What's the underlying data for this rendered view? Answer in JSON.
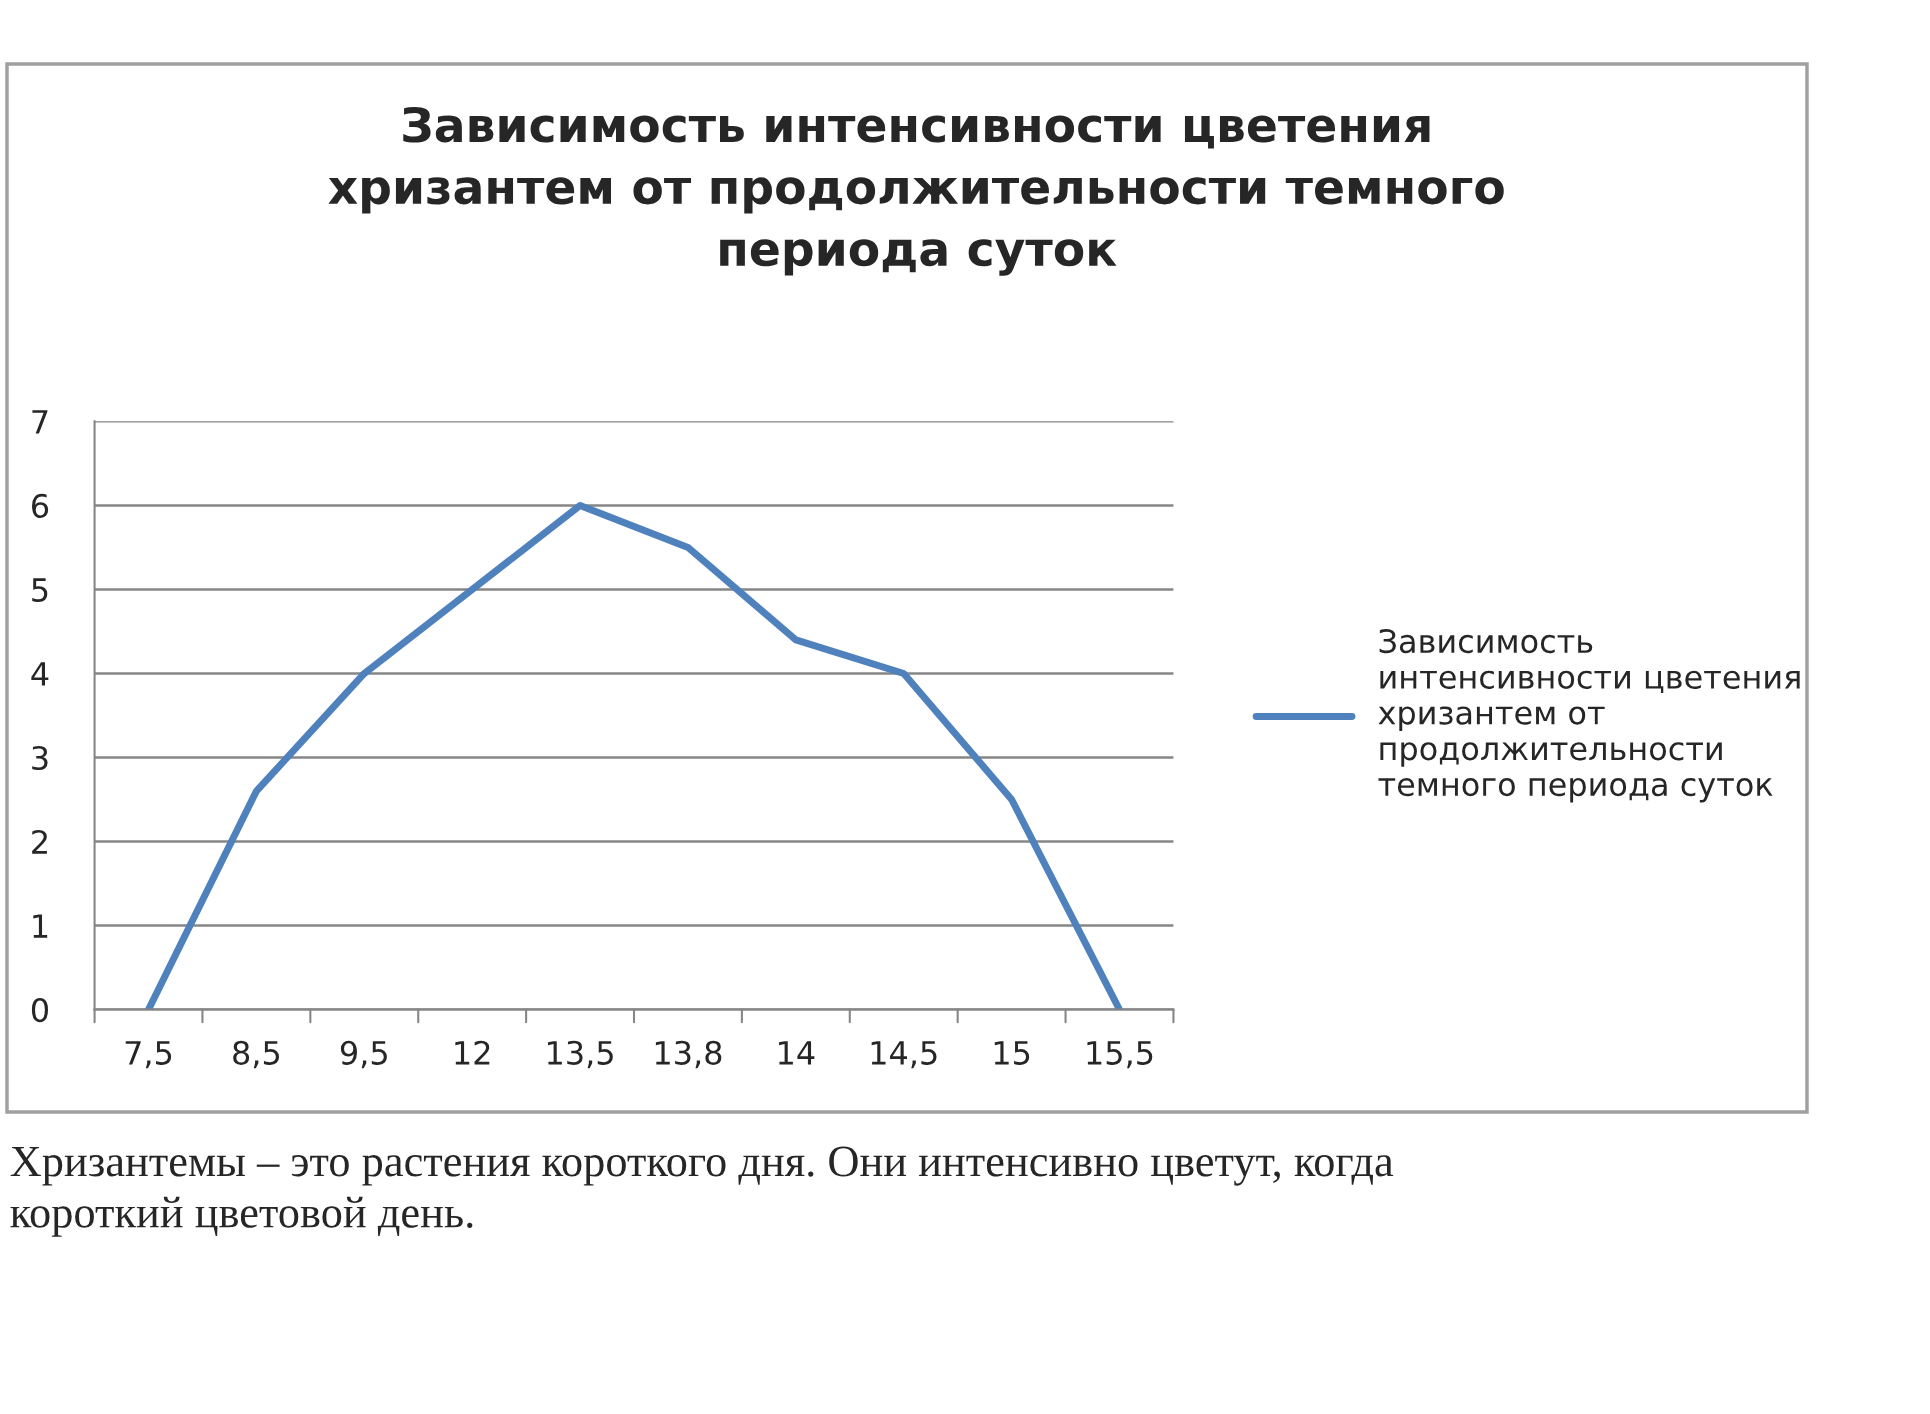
{
  "chart_data": {
    "type": "line",
    "title": "Зависимость интенсивности цветения\nхризантем от продолжительности темного\nпериода суток",
    "categories": [
      "7,5",
      "8,5",
      "9,5",
      "12",
      "13,5",
      "13,8",
      "14",
      "14,5",
      "15",
      "15,5"
    ],
    "series": [
      {
        "name": "Зависимость\nинтенсивности цветения\nхризантем от\nпродолжительности\nтемного периода суток",
        "color": "#4f81bd",
        "values": [
          0,
          2.6,
          4,
          5,
          6,
          5.5,
          4.4,
          4,
          2.5,
          0
        ]
      }
    ],
    "ylim": [
      0,
      7
    ],
    "yticks": [
      0,
      1,
      2,
      3,
      4,
      5,
      6,
      7
    ],
    "grid": "y",
    "legend": "right",
    "marker": "none",
    "line_style": "solid",
    "annotations": [
      "Хризантемы – это растения короткого дня. Они интенсивно цветут, когда\nкороткий цветовой день."
    ]
  }
}
